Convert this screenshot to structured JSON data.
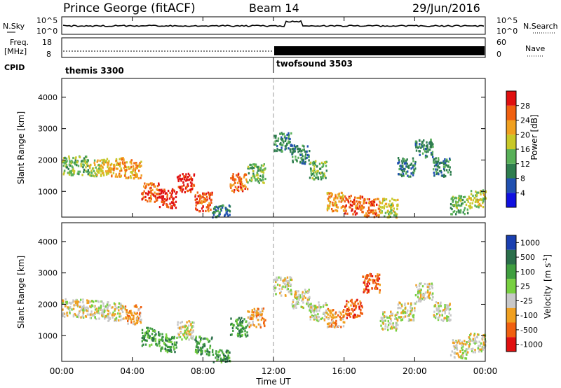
{
  "header": {
    "station": "Prince George (fitACF)",
    "beam": "Beam 14",
    "date": "29/Jun/2016"
  },
  "noise_panel": {
    "left_label": "N.Sky",
    "left_ticks": [
      "10^5",
      "10^0"
    ],
    "right_label": "N.Search",
    "right_ticks": [
      "10^5",
      "10^0"
    ]
  },
  "freq_panel": {
    "left_label_line1": "Freq.",
    "left_label_line2": "[MHz]",
    "left_ticks": [
      "18",
      "8"
    ],
    "right_label": "Nave",
    "right_ticks": [
      "60",
      "0"
    ],
    "cpid_label": "CPID",
    "modes": [
      {
        "name": "themis 3300",
        "start_hour": 0
      },
      {
        "name": "twofsound 3503",
        "start_hour": 12
      }
    ]
  },
  "chart_data": [
    {
      "type": "heatmap",
      "title": "",
      "xlabel": "Time UT",
      "ylabel": "Slant Range [km]",
      "x_ticks": [
        "00:00",
        "04:00",
        "08:00",
        "12:00",
        "16:00",
        "20:00",
        "00:00"
      ],
      "x_range_hours": [
        0,
        24
      ],
      "y_ticks": [
        "1000",
        "2000",
        "3000",
        "4000"
      ],
      "ylim": [
        180,
        4600
      ],
      "colorbar": {
        "label": "Power [dB]",
        "ticks": [
          "4",
          "8",
          "12",
          "16",
          "20",
          "24",
          "28"
        ],
        "range": [
          0,
          30
        ],
        "colors": [
          "#1010e0",
          "#2050b0",
          "#2e7d4e",
          "#58b058",
          "#c8c828",
          "#f0a020",
          "#f06010",
          "#e01010"
        ]
      },
      "series": [
        {
          "name": "",
          "hours": [
            0.0,
            1.0,
            2.0,
            3.0,
            4.0,
            5.0,
            6.0,
            7.0,
            8.0,
            9.0,
            10.0,
            11.0
          ],
          "range_km": [
            1850,
            1850,
            1800,
            1800,
            1750,
            1000,
            800,
            1300,
            700,
            300,
            1300,
            1600
          ],
          "power_db": [
            12,
            14,
            18,
            20,
            22,
            26,
            28,
            28,
            24,
            8,
            26,
            14
          ]
        },
        {
          "name": "",
          "hours": [
            12.5,
            13.5,
            14.5,
            15.5,
            16.5,
            17.5,
            18.5,
            19.5,
            20.5,
            21.5,
            22.5,
            23.5
          ],
          "range_km": [
            2600,
            2200,
            1700,
            700,
            600,
            500,
            500,
            1800,
            2400,
            1800,
            600,
            800
          ],
          "power_db": [
            8,
            10,
            12,
            22,
            24,
            26,
            18,
            10,
            8,
            10,
            12,
            16
          ]
        }
      ]
    },
    {
      "type": "heatmap",
      "title": "",
      "xlabel": "Time UT",
      "ylabel": "Slant Range [km]",
      "x_ticks": [
        "00:00",
        "04:00",
        "08:00",
        "12:00",
        "16:00",
        "20:00",
        "00:00"
      ],
      "x_range_hours": [
        0,
        24
      ],
      "y_ticks": [
        "1000",
        "2000",
        "3000",
        "4000"
      ],
      "ylim": [
        180,
        4600
      ],
      "colorbar": {
        "label": "Velocity",
        "label_units": "[m s",
        "label_exp": "-1",
        "label_close": "]",
        "ticks": [
          "1000",
          "500",
          "100",
          "25",
          "-25",
          "-100",
          "-500",
          "-1000"
        ],
        "colors": [
          "#1a3fb0",
          "#2a6e4a",
          "#3f9e3f",
          "#78d040",
          "#c8c8c8",
          "#f0a020",
          "#f06010",
          "#e01010"
        ]
      },
      "series": [
        {
          "name": "",
          "hours": [
            0.0,
            1.0,
            2.0,
            3.0,
            4.0,
            5.0,
            6.0,
            7.0,
            8.0,
            9.0,
            10.0,
            11.0
          ],
          "range_km": [
            1900,
            1900,
            1850,
            1800,
            1700,
            1000,
            800,
            1200,
            700,
            300,
            1300,
            1600
          ],
          "velocity_ms": [
            0,
            0,
            0,
            0,
            -100,
            100,
            100,
            0,
            100,
            100,
            100,
            -100
          ]
        },
        {
          "name": "",
          "hours": [
            12.5,
            13.5,
            14.5,
            15.5,
            16.5,
            17.5,
            18.5,
            19.5,
            20.5,
            21.5,
            22.5,
            23.5
          ],
          "range_km": [
            2600,
            2200,
            1800,
            1600,
            1900,
            2700,
            1500,
            1800,
            2400,
            1800,
            600,
            800
          ],
          "velocity_ms": [
            0,
            0,
            0,
            -100,
            -500,
            -500,
            0,
            0,
            0,
            0,
            0,
            0
          ]
        }
      ]
    }
  ]
}
